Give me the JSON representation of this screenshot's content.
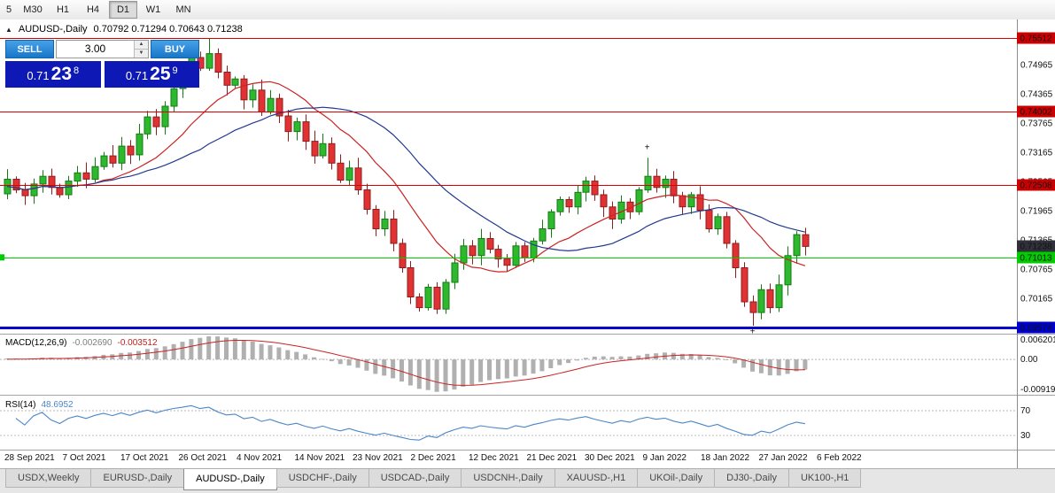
{
  "toolbar": {
    "timeframes": [
      "5",
      "M30",
      "H1",
      "H4",
      "D1",
      "W1",
      "MN"
    ],
    "active_timeframe": "D1"
  },
  "header": {
    "symbol": "AUDUSD-,Daily",
    "ohlc": "0.70792 0.71294 0.70643 0.71238"
  },
  "trade": {
    "sell_label": "SELL",
    "buy_label": "BUY",
    "volume": "3.00",
    "sell_price": {
      "base": "0.71",
      "main": "23",
      "pip": "8"
    },
    "buy_price": {
      "base": "0.71",
      "main": "25",
      "pip": "9"
    }
  },
  "indicators": {
    "macd": {
      "name": "MACD(12,26,9)",
      "value1": "-0.002690",
      "value2": "-0.003512",
      "axis_labels": [
        "0.006201",
        "0.00",
        "-0.009191"
      ]
    },
    "rsi": {
      "name": "RSI(14)",
      "value": "48.6952",
      "axis_labels": [
        "70",
        "30"
      ],
      "levels": [
        70,
        30
      ]
    }
  },
  "tabs": {
    "items": [
      "USDX,Weekly",
      "EURUSD-,Daily",
      "AUDUSD-,Daily",
      "USDCHF-,Daily",
      "USDCAD-,Daily",
      "USDCNH-,Daily",
      "XAUUSD-,H1",
      "UKOil-,Daily",
      "DJ30-,Daily",
      "UK100-,H1"
    ],
    "active": "AUDUSD-,Daily"
  },
  "chart_data": {
    "type": "candlestick",
    "symbol": "AUDUSD",
    "timeframe": "Daily",
    "current_ohlc": {
      "open": 0.70792,
      "high": 0.71294,
      "low": 0.70643,
      "close": 0.71238
    },
    "closes": [
      0.7232,
      0.7262,
      0.724,
      0.7228,
      0.7252,
      0.7268,
      0.7245,
      0.723,
      0.7258,
      0.7275,
      0.7262,
      0.7288,
      0.731,
      0.7295,
      0.733,
      0.7312,
      0.7355,
      0.739,
      0.737,
      0.7412,
      0.7448,
      0.7475,
      0.7512,
      0.749,
      0.752,
      0.7482,
      0.7455,
      0.7468,
      0.7425,
      0.7445,
      0.74,
      0.7428,
      0.7392,
      0.736,
      0.738,
      0.734,
      0.731,
      0.7335,
      0.7295,
      0.726,
      0.7285,
      0.724,
      0.72,
      0.716,
      0.718,
      0.713,
      0.708,
      0.702,
      0.6998,
      0.704,
      0.6995,
      0.705,
      0.709,
      0.7125,
      0.7105,
      0.714,
      0.7118,
      0.7098,
      0.7085,
      0.7125,
      0.71,
      0.7135,
      0.716,
      0.7195,
      0.722,
      0.7205,
      0.7235,
      0.7258,
      0.723,
      0.7205,
      0.718,
      0.7215,
      0.7195,
      0.724,
      0.7268,
      0.7245,
      0.7262,
      0.7228,
      0.7205,
      0.723,
      0.7198,
      0.716,
      0.7185,
      0.713,
      0.708,
      0.701,
      0.6988,
      0.7035,
      0.6998,
      0.7045,
      0.7105,
      0.7148,
      0.71238
    ],
    "wick_overrides": {
      "24": {
        "h": 0.7551
      },
      "74": {
        "h": 0.7306
      },
      "86": {
        "l": 0.6961
      },
      "48": {
        "l": 0.699
      },
      "50": {
        "l": 0.6985
      }
    },
    "horizontal_levels": [
      {
        "price": 0.75512,
        "label": "0.75512",
        "line_color": "#dd0000",
        "tag_bg": "#cc0000",
        "tag_fg": "#ffffff",
        "thickness": 1
      },
      {
        "price": 0.74002,
        "label": "0.74002",
        "line_color": "#dd0000",
        "tag_bg": "#cc0000",
        "tag_fg": "#ffffff",
        "thickness": 1
      },
      {
        "price": 0.72508,
        "label": "0.72508",
        "line_color": "#dd0000",
        "tag_bg": "#cc0000",
        "tag_fg": "#ffffff",
        "thickness": 1
      },
      {
        "price": 0.71013,
        "label": "0.71013",
        "line_color": "#00cc00",
        "tag_bg": "#00cc00",
        "tag_fg": "#003300",
        "thickness": 1
      },
      {
        "price": 0.69574,
        "label": "0.69574",
        "line_color": "#0000cc",
        "tag_bg": "#0000cc",
        "tag_fg": "#ffffff",
        "thickness": 3
      }
    ],
    "current_price_tag": {
      "price": 0.71238,
      "label": "0.71238",
      "tag_bg": "#30303a",
      "tag_fg": "#ffffff"
    },
    "price_axis_labels": [
      "0.74965",
      "0.74365",
      "0.73765",
      "0.73165",
      "0.72565",
      "0.71965",
      "0.71365",
      "0.70765",
      "0.70165"
    ],
    "dates": [
      "28 Sep 2021",
      "7 Oct 2021",
      "17 Oct 2021",
      "26 Oct 2021",
      "4 Nov 2021",
      "14 Nov 2021",
      "23 Nov 2021",
      "2 Dec 2021",
      "12 Dec 2021",
      "21 Dec 2021",
      "30 Dec 2021",
      "9 Jan 2022",
      "18 Jan 2022",
      "27 Jan 2022",
      "6 Feb 2022"
    ],
    "markers": [
      {
        "candle": 74,
        "price": 0.7322,
        "glyph": "+"
      },
      {
        "candle": 86,
        "price": 0.6944,
        "glyph": "+"
      }
    ],
    "colors": {
      "bull": "#2eb82e",
      "bull_stroke": "#157a15",
      "bear": "#e03232",
      "bear_stroke": "#8f1d1d",
      "ma_fast": "#cc2222",
      "ma_slow": "#223a8f",
      "macd_hist": "#b0b0b0",
      "macd_signal": "#cc2222",
      "rsi_line": "#4a86c8"
    }
  }
}
